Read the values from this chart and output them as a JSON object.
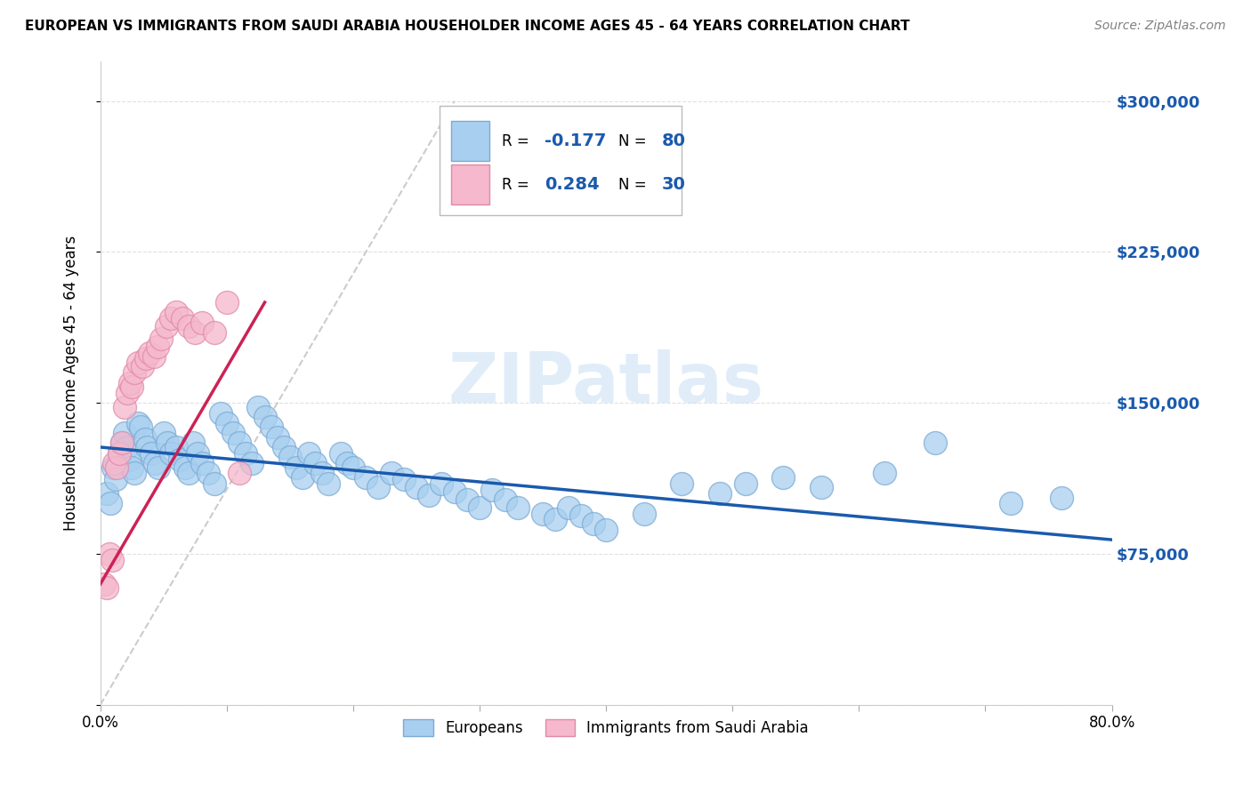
{
  "title": "EUROPEAN VS IMMIGRANTS FROM SAUDI ARABIA HOUSEHOLDER INCOME AGES 45 - 64 YEARS CORRELATION CHART",
  "source": "Source: ZipAtlas.com",
  "ylabel": "Householder Income Ages 45 - 64 years",
  "xlim": [
    0,
    0.8
  ],
  "ylim": [
    0,
    320000
  ],
  "yticks": [
    0,
    75000,
    150000,
    225000,
    300000
  ],
  "ytick_labels": [
    "",
    "$75,000",
    "$150,000",
    "$225,000",
    "$300,000"
  ],
  "xticks": [
    0.0,
    0.1,
    0.2,
    0.3,
    0.4,
    0.5,
    0.6,
    0.7,
    0.8
  ],
  "xtick_labels": [
    "0.0%",
    "",
    "",
    "",
    "",
    "",
    "",
    "",
    "80.0%"
  ],
  "blue_color": "#a8cff0",
  "pink_color": "#f5b8cc",
  "blue_edge": "#7baad4",
  "pink_edge": "#e08aaa",
  "trend_blue": "#1a5aad",
  "trend_pink": "#cc2255",
  "ref_line_color": "#cccccc",
  "watermark": "ZIPatlas",
  "blue_R": "-0.177",
  "blue_N": "80",
  "pink_R": "0.284",
  "pink_N": "30",
  "blue_scatter_x": [
    0.005,
    0.008,
    0.01,
    0.012,
    0.015,
    0.017,
    0.019,
    0.021,
    0.023,
    0.025,
    0.027,
    0.03,
    0.032,
    0.035,
    0.037,
    0.04,
    0.043,
    0.046,
    0.05,
    0.053,
    0.056,
    0.06,
    0.063,
    0.067,
    0.07,
    0.073,
    0.077,
    0.08,
    0.085,
    0.09,
    0.095,
    0.1,
    0.105,
    0.11,
    0.115,
    0.12,
    0.125,
    0.13,
    0.135,
    0.14,
    0.145,
    0.15,
    0.155,
    0.16,
    0.165,
    0.17,
    0.175,
    0.18,
    0.19,
    0.195,
    0.2,
    0.21,
    0.22,
    0.23,
    0.24,
    0.25,
    0.26,
    0.27,
    0.28,
    0.29,
    0.3,
    0.31,
    0.32,
    0.33,
    0.35,
    0.36,
    0.37,
    0.38,
    0.39,
    0.4,
    0.43,
    0.46,
    0.49,
    0.51,
    0.54,
    0.57,
    0.62,
    0.66,
    0.72,
    0.76
  ],
  "blue_scatter_y": [
    105000,
    100000,
    118000,
    112000,
    125000,
    130000,
    135000,
    128000,
    122000,
    118000,
    115000,
    140000,
    138000,
    132000,
    128000,
    125000,
    120000,
    118000,
    135000,
    130000,
    125000,
    128000,
    122000,
    118000,
    115000,
    130000,
    125000,
    120000,
    115000,
    110000,
    145000,
    140000,
    135000,
    130000,
    125000,
    120000,
    148000,
    143000,
    138000,
    133000,
    128000,
    123000,
    118000,
    113000,
    125000,
    120000,
    115000,
    110000,
    125000,
    120000,
    118000,
    113000,
    108000,
    115000,
    112000,
    108000,
    104000,
    110000,
    106000,
    102000,
    98000,
    107000,
    102000,
    98000,
    95000,
    92000,
    98000,
    94000,
    90000,
    87000,
    95000,
    110000,
    105000,
    110000,
    113000,
    108000,
    115000,
    130000,
    100000,
    103000
  ],
  "pink_scatter_x": [
    0.003,
    0.005,
    0.007,
    0.009,
    0.011,
    0.013,
    0.015,
    0.017,
    0.019,
    0.021,
    0.023,
    0.025,
    0.027,
    0.03,
    0.033,
    0.036,
    0.039,
    0.042,
    0.045,
    0.048,
    0.052,
    0.056,
    0.06,
    0.065,
    0.07,
    0.075,
    0.08,
    0.09,
    0.1,
    0.11
  ],
  "pink_scatter_y": [
    60000,
    58000,
    75000,
    72000,
    120000,
    118000,
    125000,
    130000,
    148000,
    155000,
    160000,
    158000,
    165000,
    170000,
    168000,
    172000,
    175000,
    173000,
    178000,
    182000,
    188000,
    192000,
    195000,
    192000,
    188000,
    185000,
    190000,
    185000,
    200000,
    115000
  ],
  "blue_trend_x0": 0.0,
  "blue_trend_x1": 0.8,
  "blue_trend_y0": 128000,
  "blue_trend_y1": 82000,
  "pink_trend_x0": 0.0,
  "pink_trend_x1": 0.13,
  "pink_trend_y0": 60000,
  "pink_trend_y1": 200000
}
